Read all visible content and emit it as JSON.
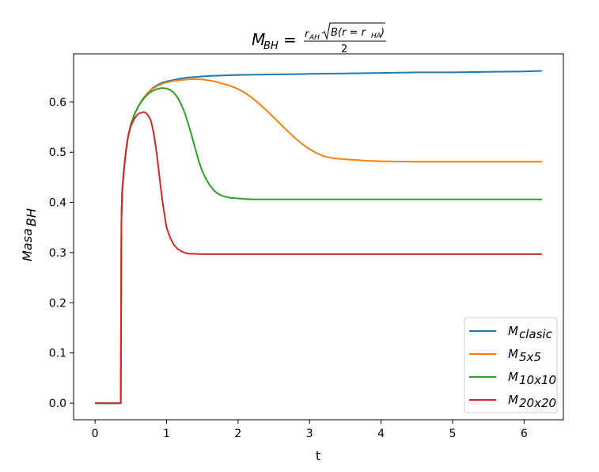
{
  "chart_data": {
    "type": "line",
    "title": {
      "lhs_main": "M",
      "lhs_sub": "BH",
      "equals": "=",
      "num_r": "r",
      "num_r_sub": "AH",
      "num_sqrt_arg": "B(r = r",
      "num_sqrt_arg_sub": "HA",
      "num_sqrt_close": ")",
      "denominator": "2"
    },
    "xlabel": "t",
    "ylabel_main": "Masa",
    "ylabel_sub": "BH",
    "xlim": [
      -0.3,
      6.55
    ],
    "ylim": [
      -0.033,
      0.696
    ],
    "xticks": [
      0,
      1,
      2,
      3,
      4,
      5,
      6
    ],
    "yticks": [
      0.0,
      0.1,
      0.2,
      0.3,
      0.4,
      0.5,
      0.6
    ],
    "ytick_labels": [
      "0.0",
      "0.1",
      "0.2",
      "0.3",
      "0.4",
      "0.5",
      "0.6"
    ],
    "legend_position": "lower-right",
    "series": [
      {
        "name_main": "M",
        "name_sub": "clasic",
        "color": "#1f77b4",
        "x": [
          0,
          0.36,
          0.37,
          0.38,
          0.4,
          0.43,
          0.46,
          0.5,
          0.55,
          0.6,
          0.65,
          0.7,
          0.75,
          0.8,
          0.85,
          0.9,
          0.95,
          1.0,
          1.1,
          1.2,
          1.3,
          1.4,
          1.5,
          1.6,
          1.8,
          2.0,
          2.5,
          3.0,
          3.5,
          4.0,
          4.5,
          5.0,
          5.5,
          6.0,
          6.25
        ],
        "y": [
          0,
          0,
          0.37,
          0.42,
          0.46,
          0.5,
          0.53,
          0.555,
          0.575,
          0.59,
          0.602,
          0.612,
          0.62,
          0.627,
          0.632,
          0.636,
          0.639,
          0.641,
          0.644,
          0.647,
          0.649,
          0.65,
          0.651,
          0.652,
          0.653,
          0.654,
          0.655,
          0.656,
          0.657,
          0.658,
          0.659,
          0.659,
          0.66,
          0.661,
          0.662
        ]
      },
      {
        "name_main": "M",
        "name_sub": "5x5",
        "color": "#ff7f0e",
        "x": [
          0,
          0.36,
          0.37,
          0.38,
          0.4,
          0.43,
          0.46,
          0.5,
          0.55,
          0.6,
          0.65,
          0.7,
          0.75,
          0.8,
          0.85,
          0.9,
          0.95,
          1.0,
          1.1,
          1.2,
          1.3,
          1.4,
          1.5,
          1.6,
          1.7,
          1.8,
          1.9,
          2.0,
          2.1,
          2.2,
          2.3,
          2.4,
          2.5,
          2.6,
          2.7,
          2.8,
          2.9,
          3.0,
          3.1,
          3.2,
          3.3,
          3.4,
          3.6,
          3.8,
          4.0,
          4.5,
          5.0,
          6.25
        ],
        "y": [
          0,
          0,
          0.37,
          0.42,
          0.46,
          0.5,
          0.53,
          0.555,
          0.575,
          0.59,
          0.602,
          0.612,
          0.62,
          0.626,
          0.63,
          0.634,
          0.637,
          0.639,
          0.642,
          0.644,
          0.645,
          0.646,
          0.645,
          0.643,
          0.64,
          0.636,
          0.632,
          0.626,
          0.618,
          0.608,
          0.596,
          0.583,
          0.569,
          0.555,
          0.541,
          0.528,
          0.516,
          0.506,
          0.498,
          0.492,
          0.489,
          0.487,
          0.485,
          0.483,
          0.482,
          0.481,
          0.481,
          0.481
        ]
      },
      {
        "name_main": "M",
        "name_sub": "10x10",
        "color": "#2ca02c",
        "x": [
          0,
          0.36,
          0.37,
          0.38,
          0.4,
          0.43,
          0.46,
          0.5,
          0.55,
          0.6,
          0.65,
          0.7,
          0.75,
          0.8,
          0.85,
          0.9,
          0.95,
          1.0,
          1.05,
          1.1,
          1.15,
          1.2,
          1.25,
          1.3,
          1.35,
          1.4,
          1.45,
          1.5,
          1.55,
          1.6,
          1.65,
          1.7,
          1.75,
          1.8,
          1.9,
          2.0,
          2.1,
          2.2,
          2.4,
          3.0,
          4.0,
          5.0,
          6.25
        ],
        "y": [
          0,
          0,
          0.37,
          0.42,
          0.46,
          0.5,
          0.53,
          0.555,
          0.575,
          0.59,
          0.601,
          0.61,
          0.617,
          0.622,
          0.625,
          0.627,
          0.628,
          0.627,
          0.624,
          0.619,
          0.61,
          0.597,
          0.58,
          0.558,
          0.534,
          0.508,
          0.483,
          0.462,
          0.447,
          0.435,
          0.426,
          0.419,
          0.415,
          0.412,
          0.409,
          0.408,
          0.407,
          0.406,
          0.406,
          0.406,
          0.406,
          0.406,
          0.406
        ]
      },
      {
        "name_main": "M",
        "name_sub": "20x20",
        "color": "#d62728",
        "x": [
          0,
          0.36,
          0.37,
          0.38,
          0.4,
          0.43,
          0.46,
          0.5,
          0.55,
          0.6,
          0.65,
          0.68,
          0.7,
          0.72,
          0.75,
          0.78,
          0.8,
          0.83,
          0.86,
          0.89,
          0.92,
          0.95,
          0.98,
          1.0,
          1.05,
          1.1,
          1.15,
          1.2,
          1.25,
          1.3,
          1.5,
          2.0,
          3.0,
          4.0,
          5.0,
          6.25
        ],
        "y": [
          0,
          0,
          0.37,
          0.42,
          0.46,
          0.5,
          0.53,
          0.552,
          0.567,
          0.576,
          0.579,
          0.58,
          0.579,
          0.577,
          0.572,
          0.563,
          0.552,
          0.53,
          0.5,
          0.465,
          0.428,
          0.395,
          0.367,
          0.35,
          0.33,
          0.316,
          0.308,
          0.303,
          0.3,
          0.298,
          0.297,
          0.297,
          0.297,
          0.297,
          0.297,
          0.297
        ]
      }
    ]
  }
}
